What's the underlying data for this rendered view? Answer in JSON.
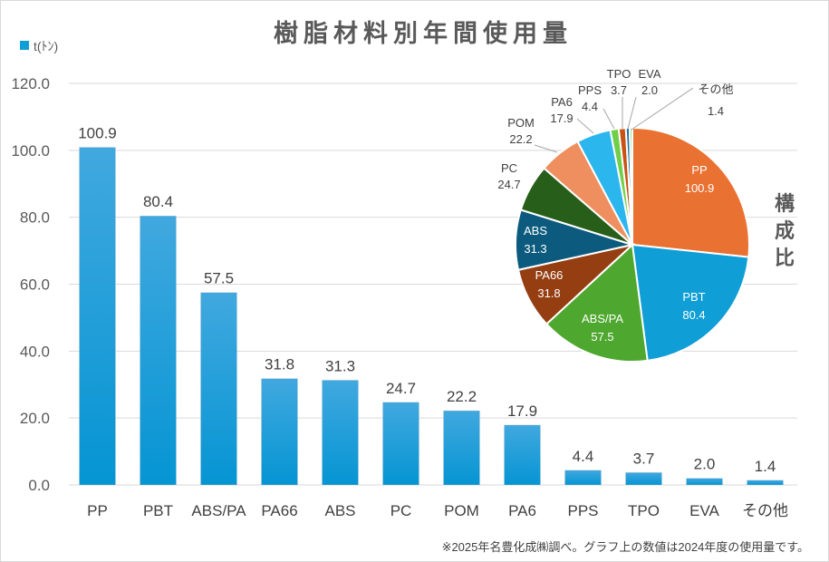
{
  "chart_data": [
    {
      "type": "bar",
      "title": "樹脂材料別年間使用量",
      "legend": {
        "label": "t(ﾄﾝ)",
        "position": "top-left",
        "color": "#0f9ed5"
      },
      "xlabel": "",
      "ylabel": "",
      "ylim": [
        0,
        120
      ],
      "yticks": [
        "0.0",
        "20.0",
        "40.0",
        "60.0",
        "80.0",
        "100.0",
        "120.0"
      ],
      "ytick_values": [
        0,
        20,
        40,
        60,
        80,
        100,
        120
      ],
      "grid": true,
      "categories": [
        "PP",
        "PBT",
        "ABS/PA",
        "PA66",
        "ABS",
        "PC",
        "POM",
        "PA6",
        "PPS",
        "TPO",
        "EVA",
        "その他"
      ],
      "values": [
        100.9,
        80.4,
        57.5,
        31.8,
        31.3,
        24.7,
        22.2,
        17.9,
        4.4,
        3.7,
        2.0,
        1.4
      ],
      "value_labels": [
        "100.9",
        "80.4",
        "57.5",
        "31.8",
        "31.3",
        "24.7",
        "22.2",
        "17.9",
        "4.4",
        "3.7",
        "2.0",
        "1.4"
      ],
      "bar_color": "#0f9ed5"
    },
    {
      "type": "pie",
      "title": "構成比",
      "title_chars": [
        "構",
        "成",
        "比"
      ],
      "categories": [
        "PP",
        "PBT",
        "ABS/PA",
        "PA66",
        "ABS",
        "PC",
        "POM",
        "PA6",
        "PPS",
        "TPO",
        "EVA",
        "その他"
      ],
      "values": [
        100.9,
        80.4,
        57.5,
        31.8,
        31.3,
        24.7,
        22.2,
        17.9,
        4.4,
        3.7,
        2.0,
        1.4
      ],
      "value_labels": [
        "100.9",
        "80.4",
        "57.5",
        "31.8",
        "31.3",
        "24.7",
        "22.2",
        "17.9",
        "4.4",
        "3.7",
        "2.0",
        "1.4"
      ],
      "colors": [
        "#e97132",
        "#0f9ed5",
        "#4ea72e",
        "#953e12",
        "#0c5b7e",
        "#275e1a",
        "#ef8f5f",
        "#2cb6ee",
        "#6fcf48",
        "#c95215",
        "#1774a3",
        "#9bd48a"
      ],
      "start_angle_deg": 0,
      "direction": "clockwise"
    }
  ],
  "footnote": "※2025年名豊化成㈱調べ。グラフ上の数値は2024年度の使用量です。"
}
